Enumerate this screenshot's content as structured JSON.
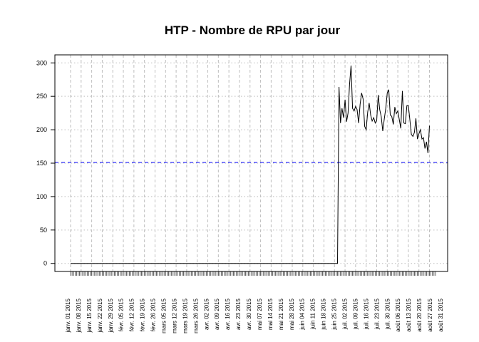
{
  "chart_data": {
    "type": "line",
    "title": "HTP  - Nombre de RPU par jour",
    "xlabel": "",
    "ylabel": "",
    "x_range": [
      "2015-01-01",
      "2015-08-31"
    ],
    "ylim": [
      -12,
      312
    ],
    "yticks": [
      0,
      50,
      100,
      150,
      200,
      250,
      300
    ],
    "grid": true,
    "reference_line": {
      "y": 151,
      "color": "#0000ff",
      "style": "dashed"
    },
    "line_color": "#000000",
    "grid_color": "#bebebe",
    "x_tick_labels": [
      "janv. 01 2015",
      "janv. 08 2015",
      "janv. 15 2015",
      "janv. 22 2015",
      "janv. 29 2015",
      "févr. 05 2015",
      "févr. 12 2015",
      "févr. 19 2015",
      "févr. 26 2015",
      "mars 05 2015",
      "mars 12 2015",
      "mars 19 2015",
      "mars 26 2015",
      "avr. 02 2015",
      "avr. 09 2015",
      "avr. 16 2015",
      "avr. 23 2015",
      "avr. 30 2015",
      "mai 07 2015",
      "mai 14 2015",
      "mai 21 2015",
      "mai 28 2015",
      "juin 04 2015",
      "juin 11 2015",
      "juin 18 2015",
      "juin 25 2015",
      "juil. 02 2015",
      "juil. 09 2015",
      "juil. 16 2015",
      "juil. 23 2015",
      "juil. 30 2015",
      "août 06 2015",
      "août 13 2015",
      "août 20 2015",
      "août 27 2015",
      "août 31 2015"
    ],
    "series": [
      {
        "points": [
          [
            "2015-01-01",
            0
          ],
          [
            "2015-02-01",
            0
          ],
          [
            "2015-03-01",
            0
          ],
          [
            "2015-04-01",
            0
          ],
          [
            "2015-05-01",
            0
          ],
          [
            "2015-06-01",
            0
          ],
          [
            "2015-06-27",
            0
          ],
          [
            "2015-06-28",
            264
          ],
          [
            "2015-06-29",
            210
          ],
          [
            "2015-06-30",
            232
          ],
          [
            "2015-07-01",
            218
          ],
          [
            "2015-07-02",
            245
          ],
          [
            "2015-07-03",
            212
          ],
          [
            "2015-07-04",
            225
          ],
          [
            "2015-07-05",
            268
          ],
          [
            "2015-07-06",
            296
          ],
          [
            "2015-07-07",
            232
          ],
          [
            "2015-07-08",
            228
          ],
          [
            "2015-07-09",
            235
          ],
          [
            "2015-07-10",
            230
          ],
          [
            "2015-07-11",
            210
          ],
          [
            "2015-07-12",
            238
          ],
          [
            "2015-07-13",
            255
          ],
          [
            "2015-07-14",
            246
          ],
          [
            "2015-07-15",
            205
          ],
          [
            "2015-07-16",
            200
          ],
          [
            "2015-07-17",
            226
          ],
          [
            "2015-07-18",
            240
          ],
          [
            "2015-07-19",
            222
          ],
          [
            "2015-07-20",
            213
          ],
          [
            "2015-07-21",
            218
          ],
          [
            "2015-07-22",
            210
          ],
          [
            "2015-07-23",
            214
          ],
          [
            "2015-07-24",
            252
          ],
          [
            "2015-07-25",
            230
          ],
          [
            "2015-07-26",
            220
          ],
          [
            "2015-07-27",
            198
          ],
          [
            "2015-07-28",
            216
          ],
          [
            "2015-07-29",
            232
          ],
          [
            "2015-07-30",
            255
          ],
          [
            "2015-07-31",
            260
          ],
          [
            "2015-08-01",
            222
          ],
          [
            "2015-08-02",
            220
          ],
          [
            "2015-08-03",
            208
          ],
          [
            "2015-08-04",
            234
          ],
          [
            "2015-08-05",
            224
          ],
          [
            "2015-08-06",
            228
          ],
          [
            "2015-08-07",
            215
          ],
          [
            "2015-08-08",
            202
          ],
          [
            "2015-08-09",
            258
          ],
          [
            "2015-08-10",
            210
          ],
          [
            "2015-08-11",
            209
          ],
          [
            "2015-08-12",
            236
          ],
          [
            "2015-08-13",
            236
          ],
          [
            "2015-08-14",
            215
          ],
          [
            "2015-08-15",
            193
          ],
          [
            "2015-08-16",
            190
          ],
          [
            "2015-08-17",
            196
          ],
          [
            "2015-08-18",
            217
          ],
          [
            "2015-08-19",
            186
          ],
          [
            "2015-08-20",
            194
          ],
          [
            "2015-08-21",
            200
          ],
          [
            "2015-08-22",
            186
          ],
          [
            "2015-08-23",
            188
          ],
          [
            "2015-08-24",
            172
          ],
          [
            "2015-08-25",
            182
          ],
          [
            "2015-08-26",
            165
          ],
          [
            "2015-08-27",
            206
          ]
        ]
      }
    ]
  }
}
